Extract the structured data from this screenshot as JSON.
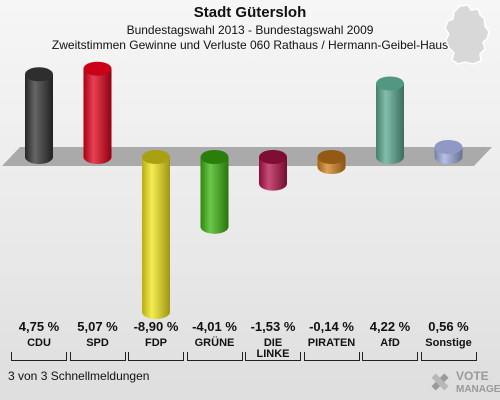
{
  "header": {
    "title": "Stadt Gütersloh",
    "subtitle": "Bundestagswahl 2013 - Bundestagswahl 2009",
    "subtitle2": "Zweitstimmen Gewinne und Verluste 060 Rathaus / Hermann-Geibel-Haus"
  },
  "footer": {
    "status": "3 von 3 Schnellmeldungen"
  },
  "logo": {
    "text_top": "VOTE",
    "text_bottom": "MANAGER"
  },
  "map_icon": "germany-map-icon",
  "chart_data": {
    "type": "bar",
    "title": "Stadt Gütersloh",
    "categories": [
      "CDU",
      "SPD",
      "FDP",
      "GRÜNE",
      "DIE LINKE",
      "PIRATEN",
      "AfD",
      "Sonstige"
    ],
    "category_lines": [
      [
        "CDU"
      ],
      [
        "SPD"
      ],
      [
        "FDP"
      ],
      [
        "GRÜNE"
      ],
      [
        "DIE",
        "LINKE"
      ],
      [
        "PIRATEN"
      ],
      [
        "AfD"
      ],
      [
        "Sonstige"
      ]
    ],
    "values": [
      4.75,
      5.07,
      -8.9,
      -4.01,
      -1.53,
      -0.14,
      4.22,
      0.56
    ],
    "value_labels": [
      "4,75 %",
      "5,07 %",
      "-8,90 %",
      "-4,01 %",
      "-1,53 %",
      "-0,14 %",
      "4,22 %",
      "0,56 %"
    ],
    "colors": [
      "#333333",
      "#e0001a",
      "#f2e61a",
      "#3cb40f",
      "#b4124a",
      "#d2801e",
      "#5aa890",
      "#a0aadc"
    ],
    "ylim": [
      -8.9,
      5.07
    ],
    "grid": false,
    "xlabel": "",
    "ylabel": ""
  }
}
